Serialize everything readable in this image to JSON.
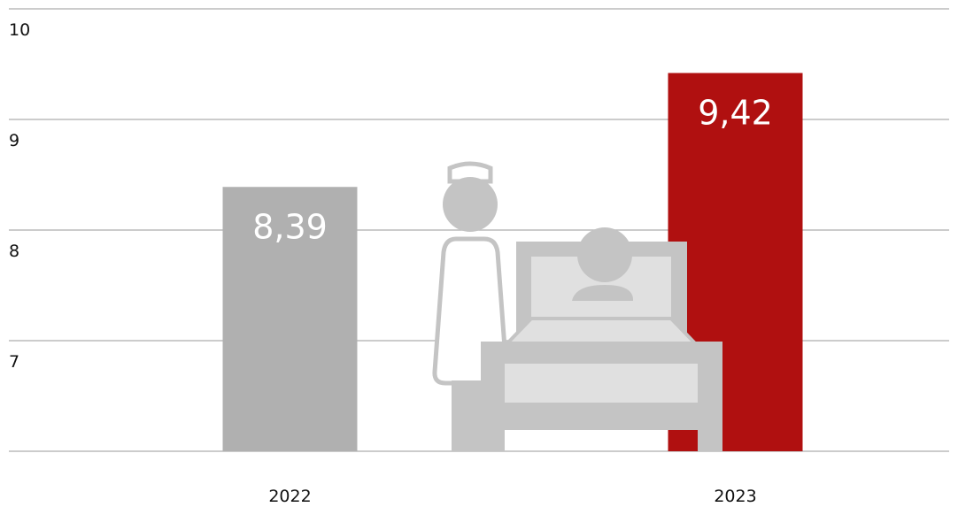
{
  "chart_data": {
    "type": "bar",
    "categories": [
      "2022",
      "2023"
    ],
    "values": [
      8.39,
      9.42
    ],
    "value_labels": [
      "8,39",
      "9,42"
    ],
    "colors": [
      "#b0b0b0",
      "#b01010"
    ],
    "ylim": [
      6,
      10.2
    ],
    "yticks": [
      7,
      8,
      9,
      10
    ],
    "grid": true
  }
}
